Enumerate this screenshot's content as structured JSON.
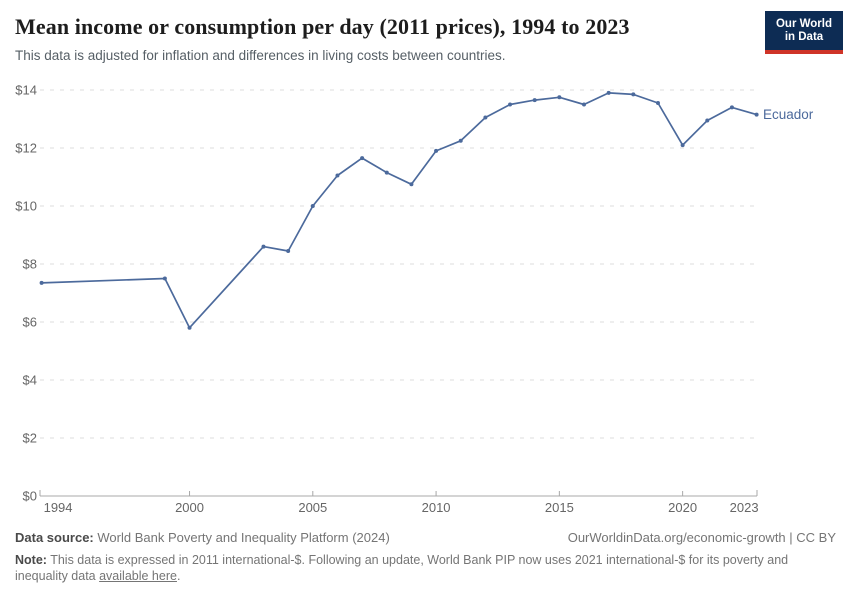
{
  "header": {
    "title": "Mean income or consumption per day (2011 prices), 1994 to 2023",
    "subtitle": "This data is adjusted for inflation and differences in living costs between countries.",
    "logo_line1": "Our World",
    "logo_line2": "in Data"
  },
  "chart_data": {
    "type": "line",
    "title": "Mean income or consumption per day (2011 prices), 1994 to 2023",
    "xlabel": "",
    "ylabel": "",
    "xlim": [
      1994,
      2023
    ],
    "ylim": [
      0,
      14
    ],
    "grid": "horizontal-dashed",
    "legend_position": "end-of-line",
    "x_ticks": [
      1994,
      2000,
      2005,
      2010,
      2015,
      2020,
      2023
    ],
    "y_ticks": [
      0,
      2,
      4,
      6,
      8,
      10,
      12,
      14
    ],
    "y_tick_prefix": "$",
    "series": [
      {
        "name": "Ecuador",
        "x": [
          1994,
          1999,
          2000,
          2003,
          2004,
          2005,
          2006,
          2007,
          2008,
          2009,
          2010,
          2011,
          2012,
          2013,
          2014,
          2015,
          2016,
          2017,
          2018,
          2019,
          2020,
          2021,
          2022,
          2023
        ],
        "values": [
          7.35,
          7.5,
          5.8,
          8.6,
          8.45,
          10.0,
          11.05,
          11.65,
          11.15,
          10.75,
          11.9,
          12.25,
          13.05,
          13.5,
          13.65,
          13.75,
          13.5,
          13.9,
          13.85,
          13.55,
          12.1,
          12.95,
          13.4,
          13.15
        ]
      }
    ]
  },
  "footer": {
    "data_source_label": "Data source:",
    "data_source_value": "World Bank Poverty and Inequality Platform (2024)",
    "attribution": "OurWorldinData.org/economic-growth | CC BY",
    "note_label": "Note:",
    "note_body": "This data is expressed in 2011 international-$. Following an update, World Bank PIP now uses 2021 international-$ for its poverty and inequality data",
    "note_link": "available here",
    "note_suffix": "."
  },
  "colors": {
    "series_line": "#4C6A9C",
    "end_label": "#4C6A9C",
    "gridline": "#dcdcdc",
    "axis_line": "#a8a8a8",
    "tick_label": "#666666",
    "logo_background": "#0d2c54",
    "logo_red_bar": "#cf3428"
  }
}
